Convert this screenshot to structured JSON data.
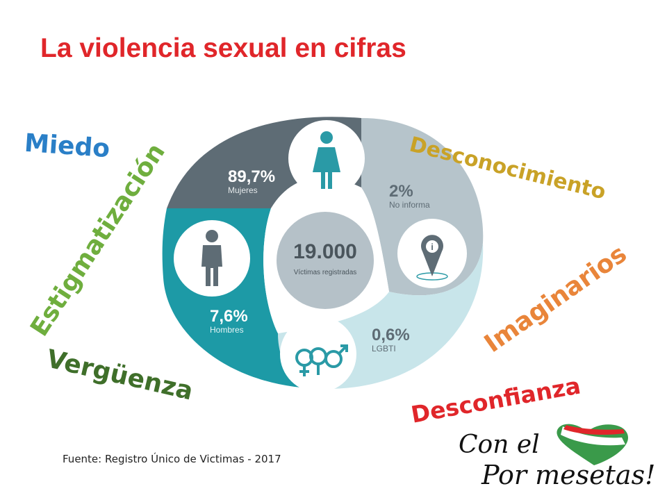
{
  "title": "La violencia sexual en cifras",
  "emotion_words": [
    {
      "text": "Miedo",
      "color": "#2a7fc7"
    },
    {
      "text": "Estigmatización",
      "color": "#6fae3e"
    },
    {
      "text": "Vergüenza",
      "color": "#3f6f2a"
    },
    {
      "text": "Desconocimiento",
      "color": "#c9a227"
    },
    {
      "text": "Imaginarios",
      "color": "#e9853a"
    },
    {
      "text": "Desconfianza",
      "color": "#e0262a"
    }
  ],
  "chart_data": {
    "type": "pie",
    "center": {
      "value": "19.000",
      "label": "Víctimas registradas"
    },
    "slices": [
      {
        "name": "Mujeres",
        "value": 89.7,
        "label": "89,7%",
        "color": "#5e6c75",
        "icon": "woman-icon"
      },
      {
        "name": "No informa",
        "value": 2,
        "label": "2%",
        "color": "#b6c4cb",
        "icon": "location-info-icon"
      },
      {
        "name": "LGBTI",
        "value": 0.6,
        "label": "0,6%",
        "color": "#c8e5ea",
        "icon": "gender-symbols-icon"
      },
      {
        "name": "Hombres",
        "value": 7.6,
        "label": "7,6%",
        "color": "#1d9aa6",
        "icon": "man-icon"
      }
    ]
  },
  "source": "Fuente: Registro Único de Victimas - 2017",
  "logo": {
    "line1": "Con el",
    "line2": "Por mesetas!"
  }
}
